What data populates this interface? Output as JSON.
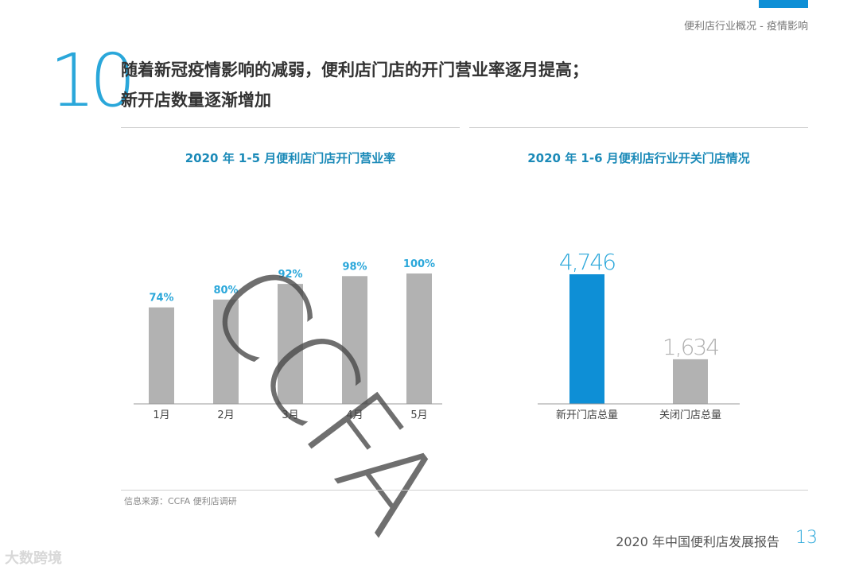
{
  "header": {
    "section_label": "便利店行业概况 - 疫情影响"
  },
  "page_number": "10",
  "headline": {
    "line1": "随着新冠疫情影响的减弱，便利店门店的开门营业率逐月提高；",
    "line2": "新开店数量逐渐增加"
  },
  "colors": {
    "accent": "#0e8fd6",
    "title": "#1b8ab8",
    "bar_gray": "#b2b2b2",
    "label_blue": "#2aa7da"
  },
  "chart_data": [
    {
      "type": "bar",
      "title": "2020 年 1-5 月便利店门店开门营业率",
      "categories": [
        "1月",
        "2月",
        "3月",
        "4月",
        "5月"
      ],
      "values": [
        74,
        80,
        92,
        98,
        100
      ],
      "data_labels": [
        "74%",
        "80%",
        "92%",
        "98%",
        "100%"
      ],
      "ylim": [
        0,
        100
      ],
      "grid": false
    },
    {
      "type": "bar",
      "title": "2020 年 1-6 月便利店行业开关门店情况",
      "categories": [
        "新开门店总量",
        "关闭门店总量"
      ],
      "values": [
        4746,
        1634
      ],
      "data_labels": [
        "4,746",
        "1,634"
      ],
      "ylim": [
        0,
        4746
      ],
      "grid": false
    }
  ],
  "watermark": "CCFA",
  "source_note": "信息来源：CCFA 便利店调研",
  "footer": {
    "title": "2020 年中国便利店发展报告",
    "page": "13"
  },
  "brand_mark": "大数跨境"
}
